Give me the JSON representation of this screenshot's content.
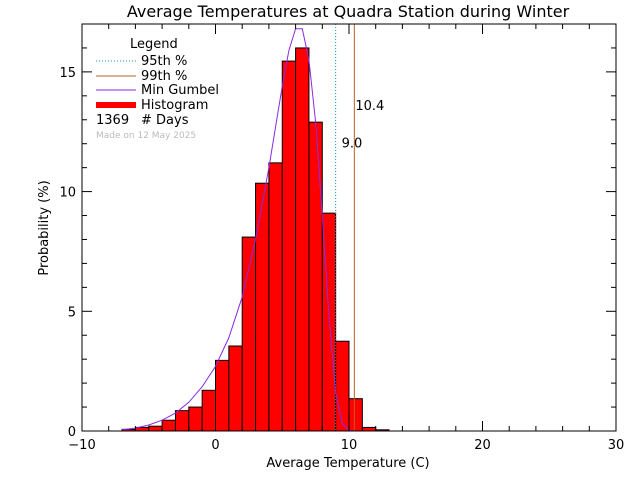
{
  "chart_data": {
    "type": "bar",
    "title": "Average Temperatures at Quadra Station during Winter",
    "xlabel": "Average Temperature (C)",
    "ylabel": "Probability (%)",
    "xlim": [
      -10,
      30
    ],
    "ylim": [
      0,
      17
    ],
    "x_ticks": [
      -10,
      0,
      10,
      20,
      30
    ],
    "y_ticks": [
      0,
      5,
      10,
      15
    ],
    "bin_width": 1,
    "histogram": {
      "bin_starts": [
        -7,
        -6,
        -5,
        -4,
        -3,
        -2,
        -1,
        0,
        1,
        2,
        3,
        4,
        5,
        6,
        7,
        8,
        9,
        10,
        11,
        12
      ],
      "values": [
        0.07,
        0.15,
        0.2,
        0.45,
        0.85,
        1.0,
        1.7,
        2.95,
        3.55,
        8.1,
        10.35,
        11.2,
        15.45,
        16.0,
        12.9,
        9.1,
        3.75,
        1.35,
        0.15,
        0.05
      ]
    },
    "gumbel_curve": {
      "x": [
        -7,
        -6,
        -5,
        -4,
        -3,
        -2,
        -1,
        0,
        1,
        2,
        3,
        4,
        5,
        5.5,
        6,
        6.5,
        7,
        7.5,
        8,
        8.5,
        9,
        9.5,
        10,
        10.5,
        11
      ],
      "y": [
        0.05,
        0.12,
        0.25,
        0.45,
        0.75,
        1.2,
        1.85,
        2.7,
        3.9,
        5.6,
        8.0,
        11.0,
        14.4,
        15.9,
        16.8,
        16.8,
        15.5,
        12.9,
        9.0,
        4.8,
        1.6,
        0.3,
        0.02,
        0.0,
        0.0
      ]
    },
    "percentile_95": {
      "value": 9.0,
      "label": "9.0"
    },
    "percentile_99": {
      "value": 10.4,
      "label": "10.4"
    },
    "legend": {
      "title": "Legend",
      "items": [
        "95th %",
        "99th %",
        "Min Gumbel",
        "Histogram"
      ],
      "count": "1369",
      "count_label": "# Days",
      "note": "Made on 12 May 2025"
    },
    "colors": {
      "histogram": "#ff0000",
      "gumbel": "#8a2be2",
      "p95": "#1a8fc4",
      "p99": "#b8621c",
      "note": "#bbbbbb"
    }
  }
}
